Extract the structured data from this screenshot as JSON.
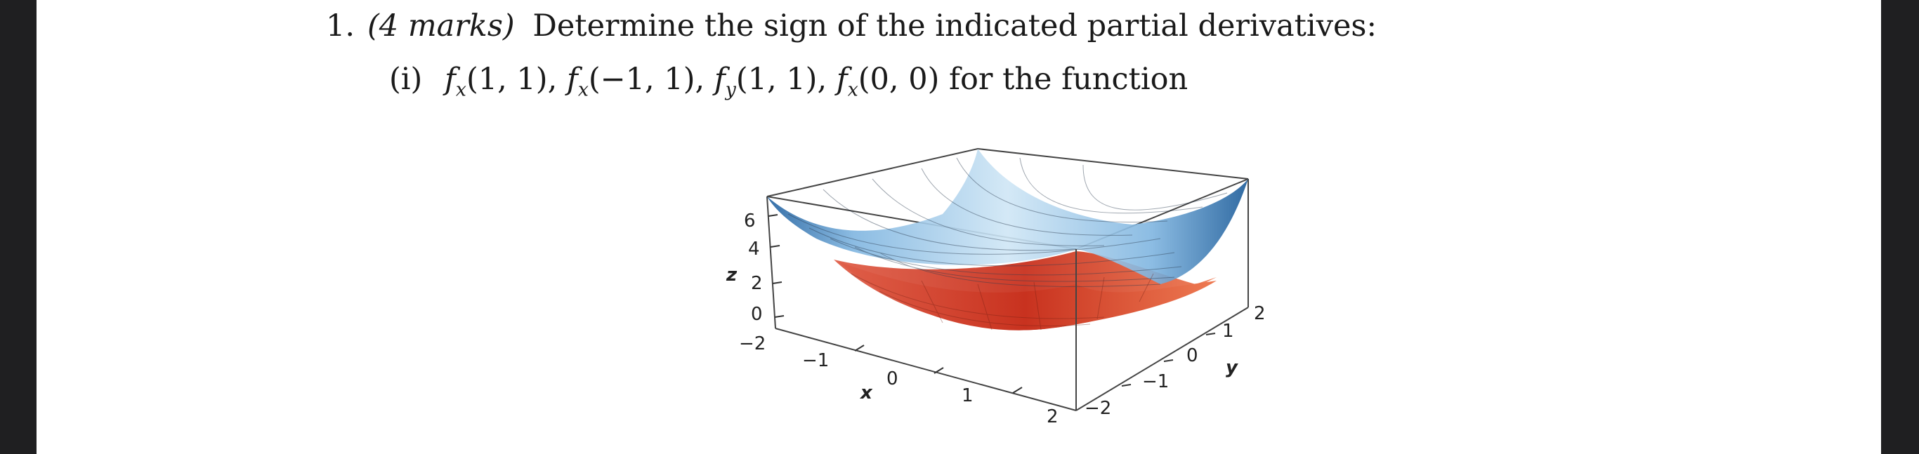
{
  "question": {
    "number": "1.",
    "marks": "(4 marks)",
    "text": "Determine the sign of the indicated partial derivatives:"
  },
  "part": {
    "label": "(i)",
    "derivatives": [
      {
        "f": "f",
        "sub": "x",
        "args": "(1, 1)"
      },
      {
        "f": "f",
        "sub": "x",
        "args": "(−1, 1)"
      },
      {
        "f": "f",
        "sub": "y",
        "args": "(1, 1)"
      },
      {
        "f": "f",
        "sub": "x",
        "args": "(0, 0)"
      }
    ],
    "separator": ",",
    "suffix": "for the function"
  },
  "figure": {
    "z_label": "z",
    "x_label": "x",
    "y_label": "y",
    "z_ticks": [
      "6",
      "4",
      "2",
      "0"
    ],
    "x_ticks": [
      "−2",
      "−1",
      "0",
      "1",
      "2"
    ],
    "y_ticks": [
      "−2",
      "−1",
      "0",
      "1",
      "2"
    ],
    "colors": {
      "top_surface": "#8fc3e8",
      "top_surface_dark": "#1f5f9e",
      "under_surface": "#d8402c",
      "grid_line": "#333333"
    }
  }
}
